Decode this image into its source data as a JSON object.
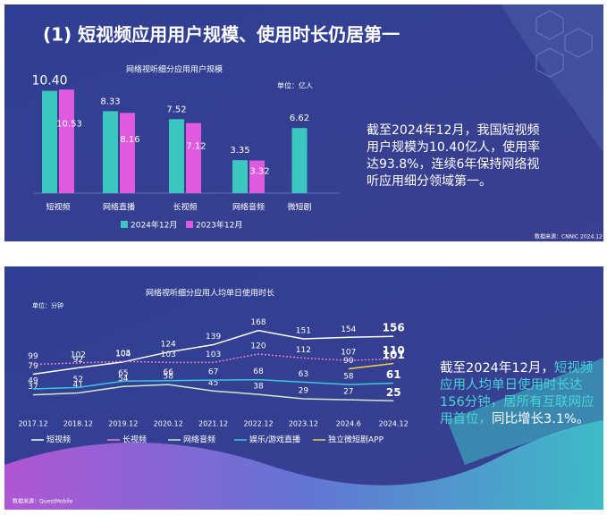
{
  "header": {
    "title": "(1) 短视频应用用户规模、使用时长仍居第一"
  },
  "notes": [
    {
      "text": "截至2024年12月，我国短视频用户规模为10.40亿人，使用率达93.8%，连续6年保持网络视听应用细分领域第一。",
      "source": "数据来源：CNNIC 2024.12"
    },
    {
      "parts": [
        "截至2024年12月，",
        "短视频应用人均单日使用时长达156分钟，居所有互联网应用首位，",
        "同比增长3.1%。"
      ],
      "source": "数据来源：QuestMobile"
    }
  ],
  "chart_data": [
    {
      "type": "bar",
      "title": "网络视听细分应用用户规模",
      "unit": "单位：亿人",
      "categories": [
        "短视频",
        "网络直播",
        "长视频",
        "网络音频",
        "微短剧"
      ],
      "series": [
        {
          "name": "2024年12月",
          "color": "#3cc6c0",
          "values": [
            10.4,
            8.33,
            7.52,
            3.35,
            6.62
          ],
          "value_labels": [
            "10.40",
            "8.33",
            "7.52",
            "3.35",
            "6.62"
          ]
        },
        {
          "name": "2023年12月",
          "color": "#e05ae0",
          "values": [
            10.53,
            8.16,
            7.12,
            3.32,
            null
          ],
          "value_labels": [
            "10.53",
            "8.16",
            "7.12",
            "3.32",
            null
          ]
        }
      ],
      "ylim": [
        0,
        11
      ]
    },
    {
      "type": "line",
      "title": "网络视听细分应用人均单日使用时长",
      "unit": "单位：分钟",
      "categories": [
        "2017.12",
        "2018.12",
        "2019.12",
        "2020.12",
        "2021.12",
        "2022.12",
        "2023.12",
        "2024.6",
        "2024.12"
      ],
      "series": [
        {
          "name": "短视频",
          "color": "#ffffff",
          "values": [
            79,
            92,
            104,
            124,
            139,
            168,
            151,
            154,
            156
          ]
        },
        {
          "name": "长视频",
          "color": "#e77fd8",
          "values": [
            99,
            102,
            105,
            103,
            103,
            120,
            112,
            107,
            110
          ]
        },
        {
          "name": "网络音频",
          "color": "#cfe8c8",
          "values": [
            37,
            41,
            54,
            58,
            45,
            38,
            29,
            27,
            25
          ]
        },
        {
          "name": "娱乐/游戏直播",
          "color": "#38c6e8",
          "values": [
            49,
            52,
            65,
            66,
            67,
            68,
            63,
            58,
            61
          ]
        },
        {
          "name": "独立微短剧APP",
          "color": "#f3d24a",
          "values": [
            null,
            null,
            null,
            null,
            null,
            null,
            null,
            90,
            101
          ]
        }
      ],
      "ylim": [
        0,
        180
      ]
    }
  ]
}
